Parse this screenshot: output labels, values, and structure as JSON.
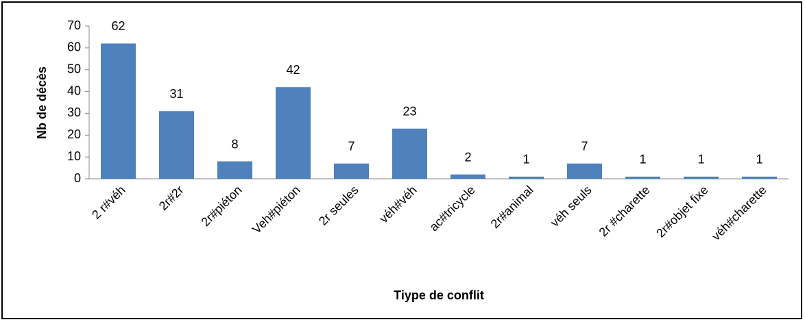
{
  "chart_data": {
    "type": "bar",
    "x_label": "Tiype de conflit",
    "y_label": "Nb de décès",
    "categories": [
      "2 r#véh",
      "2r#2r",
      "2r#piéton",
      "Veh#piéton",
      "2r seules",
      "véh#véh",
      "ac#tricycle",
      "2r#animal",
      "véh seuls",
      "2r #charette",
      "2r#objet fixe",
      "véh#charette"
    ],
    "values": [
      62,
      31,
      8,
      42,
      7,
      23,
      2,
      1,
      7,
      1,
      1,
      1
    ],
    "color": "#4f81bd",
    "ylim": [
      0,
      70
    ],
    "yticks": [
      0,
      10,
      20,
      30,
      40,
      50,
      60,
      70
    ],
    "grid": false
  }
}
